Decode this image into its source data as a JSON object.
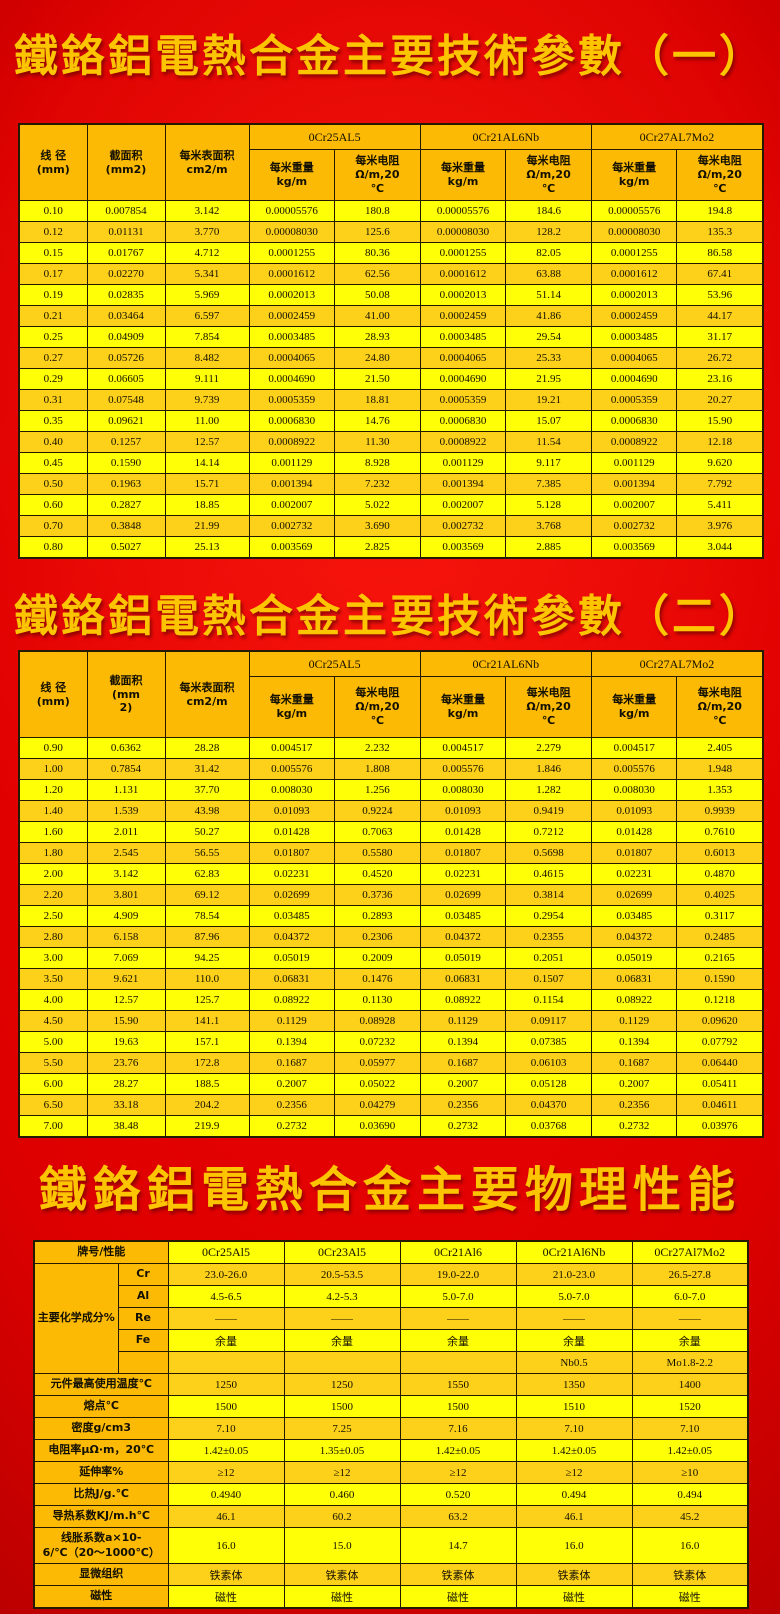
{
  "page": {
    "bg_red": "#dd0000",
    "accent_orange": "#fcba05",
    "accent_yellow": "#ffff05",
    "accent_gold": "#fdd11a",
    "title_gold": "#fdc500"
  },
  "titles": {
    "t1": "鐵鉻鋁電熱合金主要技術參數（一）",
    "t2": "鐵鉻鋁電熱合金主要技術參數（二）",
    "t3": "鐵鉻鋁電熱合金主要物理性能"
  },
  "table1": {
    "col_headers": [
      "线 径\n(mm)",
      "截面积\n(mm2)",
      "每米表面积\ncm2/m"
    ],
    "alloy_headers": [
      "0Cr25AL5",
      "0Cr21AL6Nb",
      "0Cr27AL7Mo2"
    ],
    "sub_headers": [
      "每米重量\nkg/m",
      "每米电阻\nΩ/m,20\n℃"
    ],
    "rows": [
      [
        "0.10",
        "0.007854",
        "3.142",
        "0.00005576",
        "180.8",
        "0.00005576",
        "184.6",
        "0.00005576",
        "194.8"
      ],
      [
        "0.12",
        "0.01131",
        "3.770",
        "0.00008030",
        "125.6",
        "0.00008030",
        "128.2",
        "0.00008030",
        "135.3"
      ],
      [
        "0.15",
        "0.01767",
        "4.712",
        "0.0001255",
        "80.36",
        "0.0001255",
        "82.05",
        "0.0001255",
        "86.58"
      ],
      [
        "0.17",
        "0.02270",
        "5.341",
        "0.0001612",
        "62.56",
        "0.0001612",
        "63.88",
        "0.0001612",
        "67.41"
      ],
      [
        "0.19",
        "0.02835",
        "5.969",
        "0.0002013",
        "50.08",
        "0.0002013",
        "51.14",
        "0.0002013",
        "53.96"
      ],
      [
        "0.21",
        "0.03464",
        "6.597",
        "0.0002459",
        "41.00",
        "0.0002459",
        "41.86",
        "0.0002459",
        "44.17"
      ],
      [
        "0.25",
        "0.04909",
        "7.854",
        "0.0003485",
        "28.93",
        "0.0003485",
        "29.54",
        "0.0003485",
        "31.17"
      ],
      [
        "0.27",
        "0.05726",
        "8.482",
        "0.0004065",
        "24.80",
        "0.0004065",
        "25.33",
        "0.0004065",
        "26.72"
      ],
      [
        "0.29",
        "0.06605",
        "9.111",
        "0.0004690",
        "21.50",
        "0.0004690",
        "21.95",
        "0.0004690",
        "23.16"
      ],
      [
        "0.31",
        "0.07548",
        "9.739",
        "0.0005359",
        "18.81",
        "0.0005359",
        "19.21",
        "0.0005359",
        "20.27"
      ],
      [
        "0.35",
        "0.09621",
        "11.00",
        "0.0006830",
        "14.76",
        "0.0006830",
        "15.07",
        "0.0006830",
        "15.90"
      ],
      [
        "0.40",
        "0.1257",
        "12.57",
        "0.0008922",
        "11.30",
        "0.0008922",
        "11.54",
        "0.0008922",
        "12.18"
      ],
      [
        "0.45",
        "0.1590",
        "14.14",
        "0.001129",
        "8.928",
        "0.001129",
        "9.117",
        "0.001129",
        "9.620"
      ],
      [
        "0.50",
        "0.1963",
        "15.71",
        "0.001394",
        "7.232",
        "0.001394",
        "7.385",
        "0.001394",
        "7.792"
      ],
      [
        "0.60",
        "0.2827",
        "18.85",
        "0.002007",
        "5.022",
        "0.002007",
        "5.128",
        "0.002007",
        "5.411"
      ],
      [
        "0.70",
        "0.3848",
        "21.99",
        "0.002732",
        "3.690",
        "0.002732",
        "3.768",
        "0.002732",
        "3.976"
      ],
      [
        "0.80",
        "0.5027",
        "25.13",
        "0.003569",
        "2.825",
        "0.003569",
        "2.885",
        "0.003569",
        "3.044"
      ]
    ]
  },
  "table2": {
    "col_headers": [
      "线 径\n(mm)",
      "截面积\n(mm\n2)",
      "每米表面积\ncm2/m"
    ],
    "alloy_headers": [
      "0Cr25AL5",
      "0Cr21AL6Nb",
      "0Cr27AL7Mo2"
    ],
    "sub_headers": [
      "每米重量\nkg/m",
      "每米电阻\nΩ/m,20\n℃"
    ],
    "rows": [
      [
        "0.90",
        "0.6362",
        "28.28",
        "0.004517",
        "2.232",
        "0.004517",
        "2.279",
        "0.004517",
        "2.405"
      ],
      [
        "1.00",
        "0.7854",
        "31.42",
        "0.005576",
        "1.808",
        "0.005576",
        "1.846",
        "0.005576",
        "1.948"
      ],
      [
        "1.20",
        "1.131",
        "37.70",
        "0.008030",
        "1.256",
        "0.008030",
        "1.282",
        "0.008030",
        "1.353"
      ],
      [
        "1.40",
        "1.539",
        "43.98",
        "0.01093",
        "0.9224",
        "0.01093",
        "0.9419",
        "0.01093",
        "0.9939"
      ],
      [
        "1.60",
        "2.011",
        "50.27",
        "0.01428",
        "0.7063",
        "0.01428",
        "0.7212",
        "0.01428",
        "0.7610"
      ],
      [
        "1.80",
        "2.545",
        "56.55",
        "0.01807",
        "0.5580",
        "0.01807",
        "0.5698",
        "0.01807",
        "0.6013"
      ],
      [
        "2.00",
        "3.142",
        "62.83",
        "0.02231",
        "0.4520",
        "0.02231",
        "0.4615",
        "0.02231",
        "0.4870"
      ],
      [
        "2.20",
        "3.801",
        "69.12",
        "0.02699",
        "0.3736",
        "0.02699",
        "0.3814",
        "0.02699",
        "0.4025"
      ],
      [
        "2.50",
        "4.909",
        "78.54",
        "0.03485",
        "0.2893",
        "0.03485",
        "0.2954",
        "0.03485",
        "0.3117"
      ],
      [
        "2.80",
        "6.158",
        "87.96",
        "0.04372",
        "0.2306",
        "0.04372",
        "0.2355",
        "0.04372",
        "0.2485"
      ],
      [
        "3.00",
        "7.069",
        "94.25",
        "0.05019",
        "0.2009",
        "0.05019",
        "0.2051",
        "0.05019",
        "0.2165"
      ],
      [
        "3.50",
        "9.621",
        "110.0",
        "0.06831",
        "0.1476",
        "0.06831",
        "0.1507",
        "0.06831",
        "0.1590"
      ],
      [
        "4.00",
        "12.57",
        "125.7",
        "0.08922",
        "0.1130",
        "0.08922",
        "0.1154",
        "0.08922",
        "0.1218"
      ],
      [
        "4.50",
        "15.90",
        "141.1",
        "0.1129",
        "0.08928",
        "0.1129",
        "0.09117",
        "0.1129",
        "0.09620"
      ],
      [
        "5.00",
        "19.63",
        "157.1",
        "0.1394",
        "0.07232",
        "0.1394",
        "0.07385",
        "0.1394",
        "0.07792"
      ],
      [
        "5.50",
        "23.76",
        "172.8",
        "0.1687",
        "0.05977",
        "0.1687",
        "0.06103",
        "0.1687",
        "0.06440"
      ],
      [
        "6.00",
        "28.27",
        "188.5",
        "0.2007",
        "0.05022",
        "0.2007",
        "0.05128",
        "0.2007",
        "0.05411"
      ],
      [
        "6.50",
        "33.18",
        "204.2",
        "0.2356",
        "0.04279",
        "0.2356",
        "0.04370",
        "0.2356",
        "0.04611"
      ],
      [
        "7.00",
        "38.48",
        "219.9",
        "0.2732",
        "0.03690",
        "0.2732",
        "0.03768",
        "0.2732",
        "0.03976"
      ]
    ]
  },
  "table3": {
    "header_label": "牌号/性能",
    "alloys": [
      "0Cr25Al5",
      "0Cr23Al5",
      "0Cr21Al6",
      "0Cr21Al6Nb",
      "0Cr27Al7Mo2"
    ],
    "chem": {
      "group_label": "主要化学成分%",
      "rows": [
        {
          "el": "Cr",
          "values": [
            "23.0-26.0",
            "20.5-53.5",
            "19.0-22.0",
            "21.0-23.0",
            "26.5-27.8"
          ]
        },
        {
          "el": "Al",
          "values": [
            "4.5-6.5",
            "4.2-5.3",
            "5.0-7.0",
            "5.0-7.0",
            "6.0-7.0"
          ]
        },
        {
          "el": "Re",
          "values": [
            "——",
            "——",
            "——",
            "——",
            "——"
          ]
        },
        {
          "el": "Fe",
          "values": [
            "余量",
            "余量",
            "余量",
            "余量",
            "余量"
          ]
        },
        {
          "el": "",
          "values": [
            "",
            "",
            "",
            "Nb0.5",
            "Mo1.8-2.2"
          ]
        }
      ]
    },
    "properties": [
      {
        "label": "元件最高使用温度℃",
        "values": [
          "1250",
          "1250",
          "1550",
          "1350",
          "1400"
        ]
      },
      {
        "label": "熔点℃",
        "values": [
          "1500",
          "1500",
          "1500",
          "1510",
          "1520"
        ]
      },
      {
        "label": "密度g/cm3",
        "values": [
          "7.10",
          "7.25",
          "7.16",
          "7.10",
          "7.10"
        ]
      },
      {
        "label": "电阻率μΩ·m，20℃",
        "values": [
          "1.42±0.05",
          "1.35±0.05",
          "1.42±0.05",
          "1.42±0.05",
          "1.42±0.05"
        ]
      },
      {
        "label": "延伸率%",
        "values": [
          "≥12",
          "≥12",
          "≥12",
          "≥12",
          "≥10"
        ]
      },
      {
        "label": "比热J/g.℃",
        "values": [
          "0.4940",
          "0.460",
          "0.520",
          "0.494",
          "0.494"
        ]
      },
      {
        "label": "导热系数KJ/m.h℃",
        "values": [
          "46.1",
          "60.2",
          "63.2",
          "46.1",
          "45.2"
        ]
      },
      {
        "label": "线胀系数a×10-6/℃（20～1000℃）",
        "values": [
          "16.0",
          "15.0",
          "14.7",
          "16.0",
          "16.0"
        ],
        "tall": true
      },
      {
        "label": "显微组织",
        "values": [
          "铁素体",
          "铁素体",
          "铁素体",
          "铁素体",
          "铁素体"
        ]
      },
      {
        "label": "磁性",
        "values": [
          "磁性",
          "磁性",
          "磁性",
          "磁性",
          "磁性"
        ]
      }
    ]
  }
}
